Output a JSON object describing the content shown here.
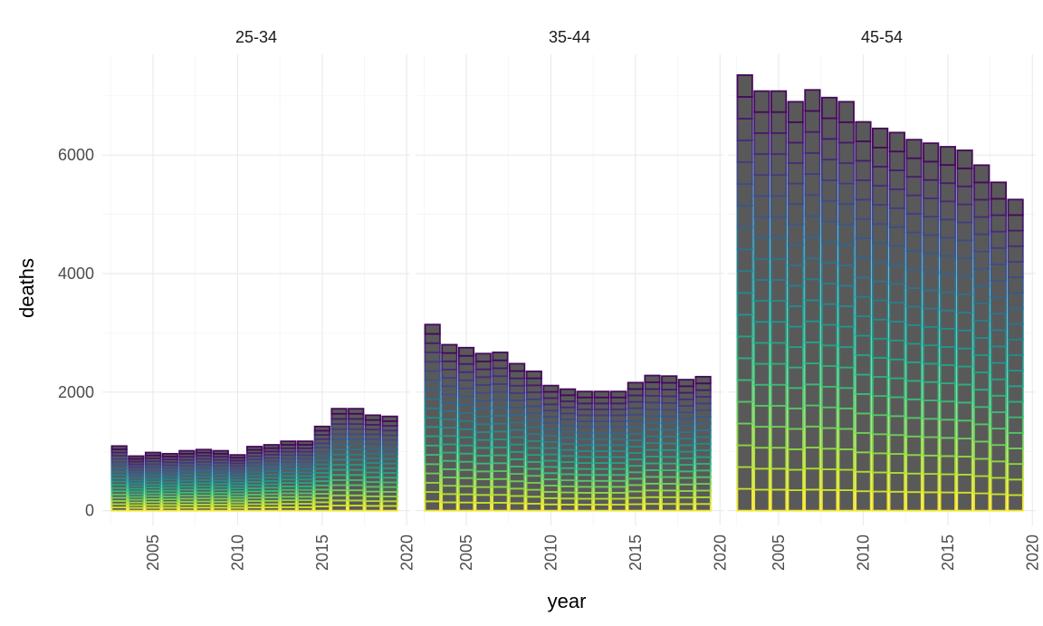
{
  "chart_data": {
    "type": "bar",
    "stacked": true,
    "xlabel": "year",
    "ylabel": "deaths",
    "years": [
      2003,
      2004,
      2005,
      2006,
      2007,
      2008,
      2009,
      2010,
      2011,
      2012,
      2013,
      2014,
      2015,
      2016,
      2017,
      2018,
      2019
    ],
    "ylim": [
      -250,
      7700
    ],
    "xlim": [
      2002.0,
      2020.2
    ],
    "y_ticks": [
      0,
      2000,
      4000,
      6000
    ],
    "x_ticks": [
      2005,
      2010,
      2015,
      2020
    ],
    "grid": true,
    "legend": "none",
    "bar_fill": "#595959",
    "color_scale": "viridis",
    "panels": [
      {
        "label": "25-34",
        "totals": [
          1090,
          920,
          980,
          960,
          1010,
          1030,
          1010,
          940,
          1080,
          1110,
          1170,
          1170,
          1420,
          1720,
          1720,
          1610,
          1590
        ],
        "segment_breaks": [
          0,
          0.05,
          0.1,
          0.15,
          0.2,
          0.25,
          0.3,
          0.35,
          0.4,
          0.45,
          0.5,
          0.55,
          0.6,
          0.65,
          0.7,
          0.75,
          0.8,
          0.85,
          0.9,
          0.95,
          1
        ]
      },
      {
        "label": "35-44",
        "totals": [
          3140,
          2800,
          2750,
          2650,
          2670,
          2480,
          2350,
          2110,
          2050,
          2010,
          2010,
          2010,
          2160,
          2280,
          2270,
          2210,
          2260
        ],
        "segment_breaks": [
          0,
          0.05,
          0.1,
          0.15,
          0.2,
          0.25,
          0.3,
          0.35,
          0.4,
          0.45,
          0.5,
          0.55,
          0.6,
          0.65,
          0.7,
          0.75,
          0.8,
          0.85,
          0.9,
          0.95,
          1
        ]
      },
      {
        "label": "45-54",
        "totals": [
          7350,
          7080,
          7080,
          6900,
          7100,
          6970,
          6900,
          6560,
          6450,
          6380,
          6260,
          6200,
          6140,
          6080,
          5830,
          5540,
          5250
        ],
        "segment_breaks": [
          0,
          0.05,
          0.1,
          0.15,
          0.2,
          0.25,
          0.3,
          0.35,
          0.4,
          0.45,
          0.5,
          0.55,
          0.6,
          0.65,
          0.7,
          0.75,
          0.8,
          0.85,
          0.9,
          0.95,
          1
        ]
      }
    ]
  }
}
